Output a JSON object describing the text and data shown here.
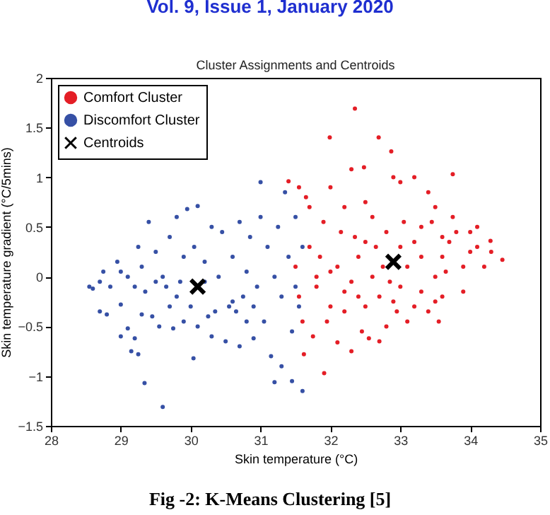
{
  "chart_data": {
    "type": "scatter",
    "title": "Cluster Assignments and Centroids",
    "xlabel": "Skin temperature (°C)",
    "ylabel": "Skin temperature gradient (°C/5mins)",
    "annotations": [
      "Vol. 9, Issue 1, January 2020",
      "Fig -2: K-Means Clustering [5]"
    ],
    "xlim": [
      28,
      35
    ],
    "xticks": [
      28,
      29,
      30,
      31,
      32,
      33,
      34,
      35
    ],
    "ylim": [
      -1.5,
      2
    ],
    "yticks": [
      -1.5,
      -1,
      -0.5,
      0,
      0.5,
      1,
      1.5,
      2
    ],
    "grid": false,
    "legend": "top left",
    "series": [
      {
        "name": "Comfort Cluster",
        "color": "#e41e26",
        "marker": "circle",
        "x": [
          31.4,
          31.55,
          31.65,
          31.7,
          31.9,
          32.0,
          31.99,
          32.3,
          32.35,
          32.48,
          32.69,
          32.87,
          32.2,
          32.5,
          32.9,
          33.0,
          33.2,
          33.4,
          33.75,
          33.5,
          33.8,
          34.0,
          34.1,
          34.29,
          34.46,
          34.3,
          34.0,
          33.9,
          33.7,
          33.6,
          33.5,
          33.6,
          33.55,
          33.4,
          33.3,
          33.2,
          33.1,
          33.0,
          32.95,
          32.8,
          32.7,
          32.65,
          32.6,
          32.5,
          32.45,
          32.4,
          32.3,
          32.2,
          32.15,
          32.1,
          32.0,
          31.95,
          31.85,
          31.8,
          31.75,
          31.7,
          31.62,
          31.6,
          31.55,
          31.5,
          31.91,
          32.1,
          32.3,
          32.55,
          32.7,
          32.9,
          33.1,
          33.3,
          33.45,
          33.6,
          33.75,
          34.1,
          34.2,
          33.9,
          32.6,
          32.8,
          33.0,
          33.2,
          32.4,
          32.2,
          32.0,
          31.8,
          32.75,
          33.3,
          32.5,
          32.85,
          33.05,
          33.5,
          33.65,
          32.35
        ],
        "values": [
          0.96,
          0.9,
          0.8,
          0.7,
          0.55,
          0.9,
          1.4,
          1.08,
          1.69,
          1.1,
          1.4,
          1.26,
          0.7,
          0.75,
          1.0,
          0.95,
          1.0,
          0.85,
          1.03,
          0.7,
          0.45,
          0.45,
          0.5,
          0.36,
          0.17,
          0.25,
          0.25,
          0.1,
          0.35,
          0.2,
          0.0,
          -0.2,
          -0.45,
          -0.35,
          -0.15,
          0.35,
          0.1,
          -0.1,
          -0.35,
          -0.5,
          -0.2,
          0.3,
          0.0,
          -0.3,
          -0.55,
          0.2,
          -0.05,
          -0.35,
          0.45,
          0.1,
          -0.3,
          -0.45,
          0.2,
          -0.1,
          -0.6,
          0.3,
          -0.78,
          -0.45,
          -0.2,
          0.1,
          -0.97,
          -0.66,
          -0.75,
          -0.62,
          -0.65,
          -0.25,
          -0.45,
          0.5,
          0.55,
          0.4,
          0.6,
          0.3,
          0.1,
          -0.15,
          0.6,
          0.45,
          0.3,
          -0.3,
          -0.2,
          -0.15,
          0.05,
          0.0,
          0.1,
          0.2,
          0.35,
          -0.05,
          0.55,
          -0.25,
          0.05,
          0.4
        ]
      },
      {
        "name": "Discomfort Cluster",
        "color": "#3650a5",
        "marker": "circle",
        "x": [
          28.55,
          28.6,
          28.7,
          28.75,
          28.7,
          28.8,
          28.85,
          28.95,
          29.0,
          29.0,
          29.1,
          29.15,
          29.2,
          29.25,
          29.1,
          29.2,
          29.25,
          29.3,
          29.35,
          29.3,
          29.34,
          29.4,
          29.45,
          29.5,
          29.5,
          29.55,
          29.6,
          29.6,
          29.65,
          29.7,
          29.7,
          29.75,
          29.8,
          29.85,
          29.9,
          29.9,
          29.95,
          30.0,
          30.04,
          30.05,
          30.1,
          30.1,
          30.2,
          30.25,
          30.3,
          30.3,
          30.35,
          30.4,
          30.45,
          30.5,
          30.55,
          30.6,
          30.6,
          30.65,
          30.7,
          30.7,
          30.75,
          30.8,
          30.85,
          30.9,
          30.9,
          31.0,
          30.95,
          31.0,
          31.05,
          31.1,
          31.15,
          31.2,
          31.2,
          31.25,
          31.3,
          31.3,
          31.35,
          31.4,
          31.45,
          31.45,
          31.5,
          31.5,
          31.55,
          31.6,
          31.6,
          30.2,
          29.8,
          30.8,
          29.0
        ],
        "values": [
          -0.1,
          -0.12,
          -0.05,
          0.05,
          -0.35,
          -0.38,
          -0.1,
          0.15,
          -0.28,
          -0.6,
          -0.52,
          -0.75,
          -0.62,
          -0.78,
          0.0,
          -0.1,
          0.3,
          0.1,
          -0.15,
          -0.38,
          -1.07,
          0.55,
          -0.4,
          -0.05,
          0.25,
          -0.5,
          -1.31,
          0.0,
          -0.1,
          0.4,
          -0.3,
          -0.52,
          0.6,
          -0.05,
          0.2,
          -0.45,
          0.68,
          -0.3,
          -0.82,
          0.3,
          0.71,
          -0.5,
          0.15,
          -0.4,
          0.5,
          -0.6,
          -0.35,
          0.0,
          0.45,
          -0.65,
          -0.3,
          0.2,
          -0.25,
          -0.35,
          0.55,
          -0.7,
          -0.2,
          0.05,
          0.4,
          -0.3,
          -0.62,
          0.95,
          -0.1,
          0.6,
          -0.45,
          0.3,
          -0.8,
          -1.06,
          0.0,
          0.5,
          -0.2,
          -0.9,
          0.85,
          0.2,
          -0.55,
          -1.05,
          -0.1,
          0.6,
          -0.3,
          -1.15,
          0.3,
          -0.05,
          -0.2,
          -0.45,
          0.05
        ]
      },
      {
        "name": "Centroids",
        "color": "#000000",
        "marker": "cross",
        "x": [
          30.1,
          32.9
        ],
        "values": [
          -0.1,
          0.15
        ]
      }
    ]
  }
}
